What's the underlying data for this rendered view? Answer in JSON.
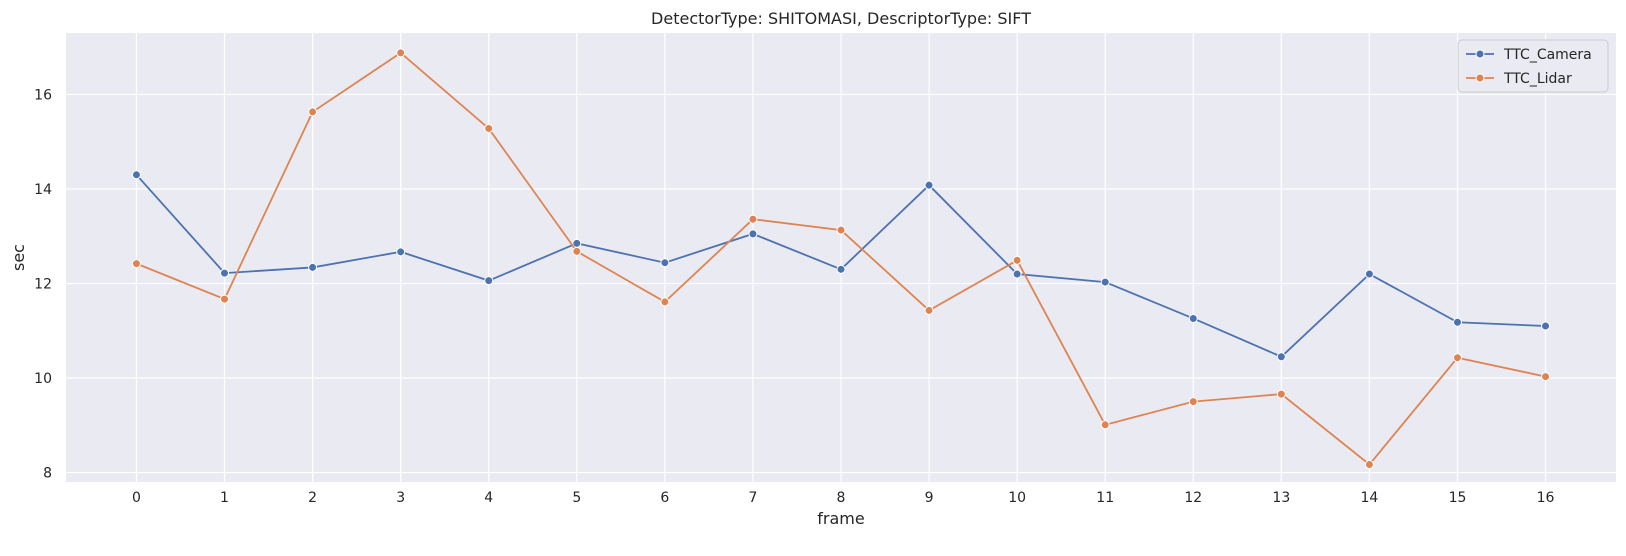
{
  "chart_data": {
    "type": "line",
    "title": "DetectorType: SHITOMASI, DescriptorType: SIFT",
    "xlabel": "frame",
    "ylabel": "sec",
    "x": [
      0,
      1,
      2,
      3,
      4,
      5,
      6,
      7,
      8,
      9,
      10,
      11,
      12,
      13,
      14,
      15,
      16
    ],
    "xlim": [
      -0.8,
      16.8
    ],
    "ylim": [
      7.8,
      17.3
    ],
    "yticks": [
      8,
      10,
      12,
      14,
      16
    ],
    "grid": true,
    "legend_position": "top-right",
    "series": [
      {
        "name": "TTC_Camera",
        "color": "#4c72b0",
        "values": [
          14.3,
          12.22,
          12.34,
          12.67,
          12.06,
          12.85,
          12.44,
          13.05,
          12.3,
          14.08,
          12.2,
          12.03,
          11.26,
          10.45,
          12.2,
          11.18,
          11.1
        ]
      },
      {
        "name": "TTC_Lidar",
        "color": "#dd8452",
        "values": [
          12.42,
          11.67,
          15.63,
          16.88,
          15.28,
          12.68,
          11.61,
          13.36,
          13.13,
          11.43,
          12.49,
          9.01,
          9.5,
          9.66,
          8.17,
          10.43,
          10.03
        ]
      }
    ]
  }
}
